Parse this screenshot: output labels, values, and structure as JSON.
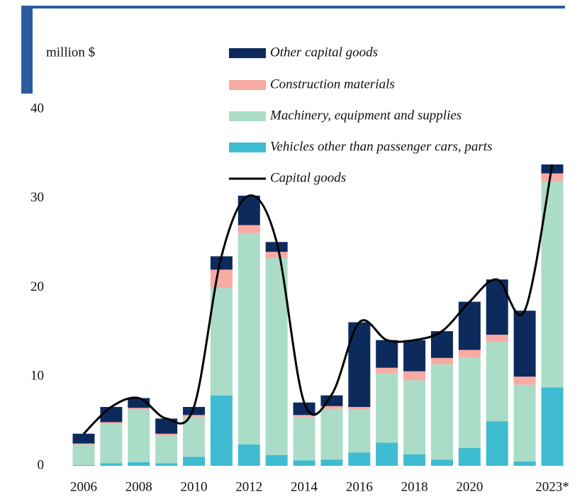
{
  "chart_data": {
    "type": "bar",
    "stacked": true,
    "y_unit_label": "million $",
    "categories": [
      "2006",
      null,
      "2008",
      null,
      "2010",
      null,
      "2012",
      null,
      "2014",
      null,
      "2016",
      null,
      "2018",
      null,
      "2020",
      null,
      null,
      "2023*"
    ],
    "series": [
      {
        "name": "Vehicles other than passenger cars, parts",
        "color": "#3fbcd2",
        "values": [
          0.1,
          0.3,
          0.4,
          0.3,
          1.0,
          7.9,
          2.4,
          1.2,
          0.6,
          0.7,
          1.5,
          2.6,
          1.3,
          0.7,
          2.0,
          5.0,
          0.5,
          8.8
        ]
      },
      {
        "name": "Machinery, equipment and supplies",
        "color": "#abdcc8",
        "values": [
          2.3,
          4.4,
          5.9,
          3.1,
          4.5,
          12.1,
          23.7,
          22.1,
          4.9,
          5.7,
          4.8,
          7.8,
          8.3,
          10.7,
          10.2,
          8.9,
          8.6,
          23.1
        ]
      },
      {
        "name": "Construction materials",
        "color": "#f9aaa3",
        "values": [
          0.1,
          0.2,
          0.2,
          0.2,
          0.2,
          2.0,
          0.9,
          0.7,
          0.2,
          0.3,
          0.3,
          0.6,
          1.0,
          0.7,
          0.8,
          0.8,
          0.9,
          0.9
        ]
      },
      {
        "name": "Other capital goods",
        "color": "#0d2a5c",
        "values": [
          1.1,
          1.7,
          1.1,
          1.7,
          0.9,
          1.5,
          3.3,
          1.1,
          1.4,
          1.2,
          9.5,
          3.1,
          3.5,
          3.0,
          5.4,
          6.2,
          7.4,
          1.0
        ]
      }
    ],
    "line_series": {
      "name": "Capital goods",
      "color": "#000000",
      "values": [
        3.6,
        6.6,
        7.6,
        5.3,
        6.6,
        23.5,
        30.3,
        25.1,
        7.1,
        8.0,
        16.1,
        14.1,
        14.1,
        15.1,
        18.4,
        20.9,
        17.4,
        33.8
      ]
    },
    "ylim": [
      0,
      40
    ],
    "yticks": [
      0,
      10,
      20,
      30,
      40
    ],
    "grid": false
  }
}
